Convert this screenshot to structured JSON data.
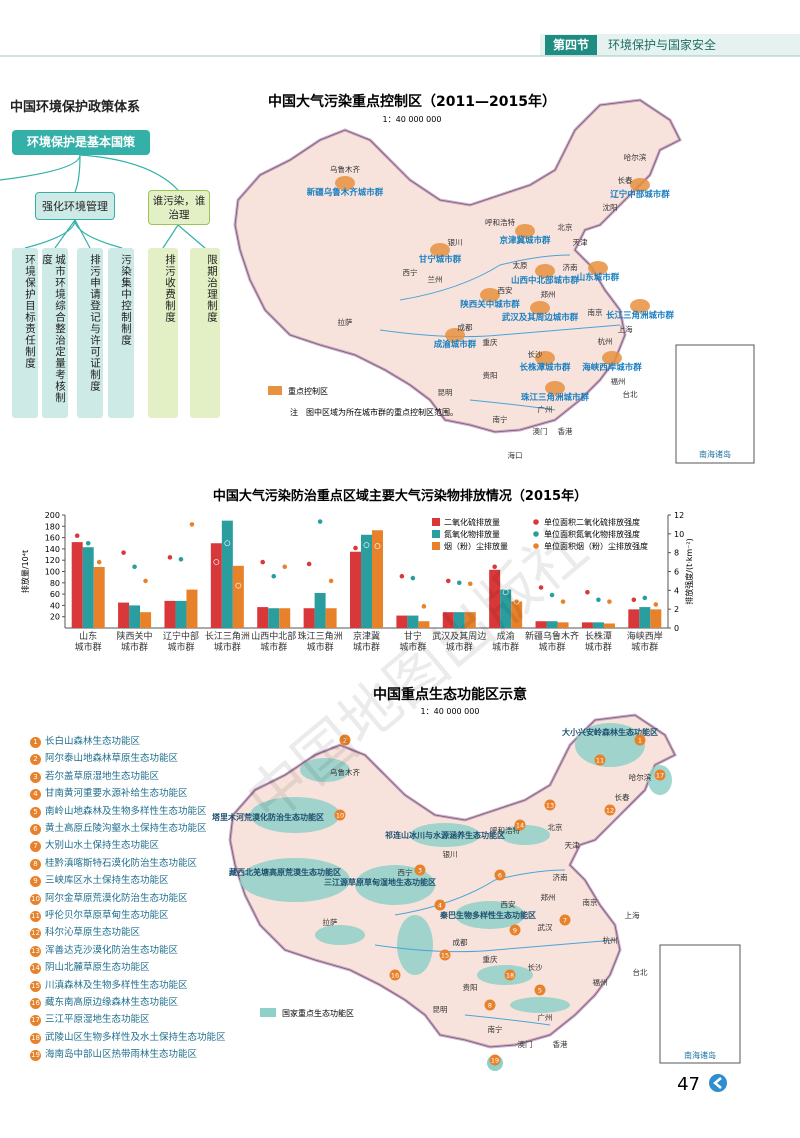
{
  "header": {
    "section": "第四节",
    "title": "环境保护与国家安全"
  },
  "policy": {
    "title": "中国环境保护政策体系",
    "root": "环境保护是基本国策",
    "branches": [
      {
        "label": "强化环境管理",
        "children": [
          "环境保护目标责任制度",
          "城市环境综合整治定量考核制度",
          "排污申请登记与许可证制度",
          "污染集中控制制度"
        ]
      },
      {
        "label": "谁污染，谁治理",
        "children": [
          "排污收费制度",
          "限期治理制度"
        ]
      }
    ]
  },
  "map1": {
    "title": "中国大气污染重点控制区（2011—2015年）",
    "scale": "1：40 000 000",
    "labels": [
      "乌鲁木齐",
      "新疆乌鲁木齐城市群",
      "哈尔滨",
      "长春",
      "辽宁中部城市群",
      "呼和浩特",
      "北京",
      "京津冀城市群",
      "银川",
      "太原",
      "甘宁城市群",
      "山西中北部城市群",
      "山东城市群",
      "兰州",
      "西宁",
      "西安",
      "郑州",
      "陕西关中城市群",
      "武汉及其周边城市群",
      "长江三角洲城市群",
      "上海",
      "成都",
      "重庆",
      "成渝城市群",
      "长沙",
      "长株潭城市群",
      "海峡西岸城市群",
      "福州",
      "拉萨",
      "昆明",
      "贵阳",
      "南宁",
      "广州",
      "珠江三角洲城市群",
      "澳门",
      "香港",
      "海口",
      "台北",
      "济南",
      "天津",
      "南京",
      "杭州",
      "沈阳"
    ],
    "legend": "重点控制区",
    "note": "注　图中区域为所在城市群的重点控制区范围。",
    "inset": "南海诸岛"
  },
  "chart_data": {
    "type": "bar",
    "title": "中国大气污染防治重点区域主要大气污染物排放情况（2015年）",
    "y_label": "排放量/10⁴t",
    "y2_label": "排放强度/(t·km⁻²)",
    "categories": [
      "山东\n城市群",
      "陕西关中\n城市群",
      "辽宁中部\n城市群",
      "长江三角洲\n城市群",
      "山西中北部\n城市群",
      "珠江三角洲\n城市群",
      "京津冀\n城市群",
      "甘宁\n城市群",
      "武汉及其周边\n城市群",
      "成渝\n城市群",
      "新疆乌鲁木齐\n城市群",
      "长株潭\n城市群",
      "海峡西岸\n城市群"
    ],
    "series": [
      {
        "name": "二氧化硫排放量",
        "type": "bar",
        "color": "#d9383a",
        "values": [
          152,
          45,
          48,
          150,
          37,
          35,
          135,
          22,
          28,
          103,
          12,
          10,
          33
        ]
      },
      {
        "name": "氮氧化物排放量",
        "type": "bar",
        "color": "#2a9d9f",
        "values": [
          143,
          40,
          48,
          190,
          35,
          62,
          165,
          22,
          28,
          68,
          12,
          10,
          37
        ]
      },
      {
        "name": "烟（粉）尘排放量",
        "type": "bar",
        "color": "#e8822a",
        "values": [
          108,
          28,
          68,
          110,
          35,
          35,
          173,
          12,
          28,
          47,
          10,
          8,
          33
        ]
      },
      {
        "name": "单位面积二氧化硫排放强度",
        "type": "scatter",
        "axis": "y2",
        "color": "#d9383a",
        "values": [
          9.8,
          8.0,
          7.5,
          7.0,
          7.0,
          6.8,
          8.5,
          5.5,
          5.0,
          6.5,
          4.3,
          3.8,
          3.0
        ]
      },
      {
        "name": "单位面积氮氧化物排放强度",
        "type": "scatter",
        "axis": "y2",
        "color": "#2a9d9f",
        "values": [
          9.0,
          6.5,
          7.3,
          9.0,
          5.5,
          11.3,
          8.8,
          5.3,
          4.8,
          3.8,
          3.5,
          3.0,
          3.2
        ]
      },
      {
        "name": "单位面积烟（粉）尘排放强度",
        "type": "scatter",
        "axis": "y2",
        "color": "#e8822a",
        "values": [
          7.0,
          5.0,
          11.0,
          4.5,
          6.5,
          5.0,
          8.7,
          2.3,
          4.7,
          2.8,
          2.8,
          2.8,
          2.5
        ]
      }
    ],
    "ylim": [
      0,
      200
    ],
    "yticks": [
      20,
      40,
      60,
      80,
      100,
      120,
      140,
      160,
      180,
      200
    ],
    "y2lim": [
      0,
      12
    ],
    "y2ticks": [
      0,
      2,
      4,
      6,
      8,
      10,
      12
    ]
  },
  "map2": {
    "title": "中国重点生态功能区示意",
    "scale": "1：40 000 000",
    "items": [
      {
        "no": 1,
        "name": "长白山森林生态功能区"
      },
      {
        "no": 2,
        "name": "阿尔泰山地森林草原生态功能区"
      },
      {
        "no": 3,
        "name": "若尔盖草原湿地生态功能区"
      },
      {
        "no": 4,
        "name": "甘南黄河重要水源补给生态功能区"
      },
      {
        "no": 5,
        "name": "南岭山地森林及生物多样性生态功能区"
      },
      {
        "no": 6,
        "name": "黄土高原丘陵沟壑水土保持生态功能区"
      },
      {
        "no": 7,
        "name": "大别山水土保持生态功能区"
      },
      {
        "no": 8,
        "name": "桂黔滇喀斯特石漠化防治生态功能区"
      },
      {
        "no": 9,
        "name": "三峡库区水土保持生态功能区"
      },
      {
        "no": 10,
        "name": "阿尔金草原荒漠化防治生态功能区"
      },
      {
        "no": 11,
        "name": "呼伦贝尔草原草甸生态功能区"
      },
      {
        "no": 12,
        "name": "科尔沁草原生态功能区"
      },
      {
        "no": 13,
        "name": "浑善达克沙漠化防治生态功能区"
      },
      {
        "no": 14,
        "name": "阴山北麓草原生态功能区"
      },
      {
        "no": 15,
        "name": "川滇森林及生物多样性生态功能区"
      },
      {
        "no": 16,
        "name": "藏东南高原边缘森林生态功能区"
      },
      {
        "no": 17,
        "name": "三江平原湿地生态功能区"
      },
      {
        "no": 18,
        "name": "武陵山区生物多样性及水土保持生态功能区"
      },
      {
        "no": 19,
        "name": "海南岛中部山区热带雨林生态功能区"
      }
    ],
    "labels": [
      "乌鲁木齐",
      "哈尔滨",
      "长春",
      "呼和浩特",
      "北京",
      "天津",
      "银川",
      "济南",
      "西宁",
      "郑州",
      "西安",
      "南京",
      "上海",
      "武汉",
      "杭州",
      "成都",
      "重庆",
      "拉萨",
      "长沙",
      "福州",
      "贵阳",
      "昆明",
      "南宁",
      "广州",
      "澳门",
      "香港",
      "台北",
      "大小兴安岭森林生态功能区",
      "塔里木河荒漠化防治生态功能区",
      "藏西北羌塘高原荒漠生态功能区",
      "祁连山冰川与水源涵养生态功能区",
      "三江源草原草甸湿地生态功能区",
      "秦巴生物多样性生态功能区"
    ],
    "legend": "国家重点生态功能区",
    "inset": "南海诸岛"
  },
  "watermark": "中国地图出版社",
  "page_number": "47"
}
